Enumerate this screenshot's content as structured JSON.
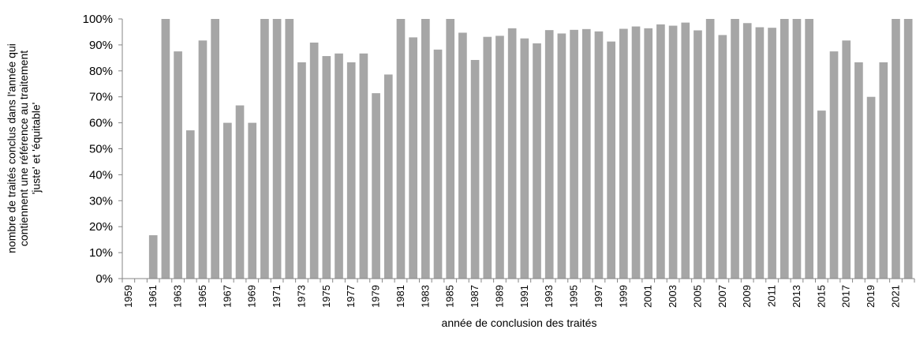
{
  "chart_data": {
    "type": "bar",
    "title": "",
    "xlabel": "année de conclusion des traités",
    "ylabel_lines": [
      "nombre de traités conclus dans l'année qui",
      "contiennent une référence au traitement",
      "'juste' et 'équitable'"
    ],
    "ylim": [
      0,
      100
    ],
    "yticks": [
      "0%",
      "10%",
      "20%",
      "30%",
      "40%",
      "50%",
      "60%",
      "70%",
      "80%",
      "90%",
      "100%"
    ],
    "bar_color": "#a6a6a6",
    "grid": false,
    "legend": "none",
    "categories": [
      "1959",
      "1960",
      "1961",
      "1962",
      "1963",
      "1964",
      "1965",
      "1966",
      "1967",
      "1968",
      "1969",
      "1970",
      "1971",
      "1972",
      "1973",
      "1974",
      "1975",
      "1976",
      "1977",
      "1978",
      "1979",
      "1980",
      "1981",
      "1982",
      "1983",
      "1984",
      "1985",
      "1986",
      "1987",
      "1988",
      "1989",
      "1990",
      "1991",
      "1992",
      "1993",
      "1994",
      "1995",
      "1996",
      "1997",
      "1998",
      "1999",
      "2000",
      "2001",
      "2002",
      "2003",
      "2004",
      "2005",
      "2006",
      "2007",
      "2008",
      "2009",
      "2010",
      "2011",
      "2012",
      "2013",
      "2014",
      "2015",
      "2016",
      "2017",
      "2018",
      "2019",
      "2020",
      "2021",
      "2022"
    ],
    "xtick_labels": [
      "1959",
      "1961",
      "1963",
      "1965",
      "1967",
      "1969",
      "1971",
      "1973",
      "1975",
      "1977",
      "1979",
      "1981",
      "1983",
      "1985",
      "1987",
      "1989",
      "1991",
      "1993",
      "1995",
      "1997",
      "1999",
      "2001",
      "2003",
      "2005",
      "2007",
      "2009",
      "2011",
      "2013",
      "2015",
      "2017",
      "2019",
      "2021"
    ],
    "values": [
      0,
      0,
      16.7,
      100,
      87.5,
      57.1,
      91.7,
      100,
      60,
      66.7,
      60,
      100,
      100,
      100,
      83.3,
      90.9,
      85.7,
      86.7,
      83.3,
      86.7,
      71.4,
      78.6,
      100,
      92.9,
      100,
      88.2,
      100,
      94.7,
      84.2,
      93.1,
      93.5,
      96.4,
      92.5,
      90.6,
      95.7,
      94.4,
      95.8,
      96.1,
      95.2,
      91.3,
      96.2,
      97.1,
      96.4,
      97.9,
      97.4,
      98.6,
      95.6,
      100,
      93.8,
      100,
      98.4,
      96.8,
      96.6,
      100,
      100,
      100,
      64.7,
      87.5,
      91.7,
      83.3,
      70,
      83.3,
      100,
      100
    ]
  }
}
